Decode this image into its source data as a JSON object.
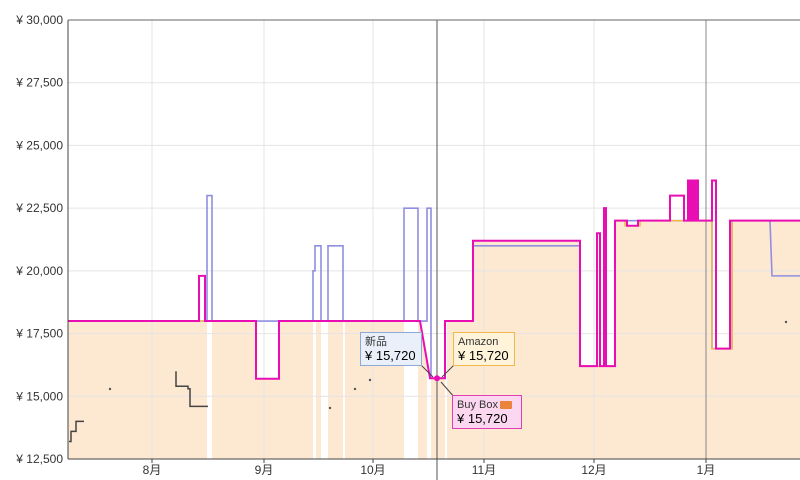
{
  "chart_data": {
    "type": "line",
    "y_ticks": [
      "¥ 12,500",
      "¥ 15,000",
      "¥ 17,500",
      "¥ 20,000",
      "¥ 22,500",
      "¥ 25,000",
      "¥ 27,500",
      "¥ 30,000"
    ],
    "ylim": [
      12500,
      30000
    ],
    "x_ticks": [
      "8月",
      "9月",
      "10月",
      "11月",
      "12月",
      "1月"
    ],
    "grid": true,
    "series": [
      {
        "key": "amazon",
        "color": "#f0b84a",
        "fill": "#fde8d2",
        "points": [
          [
            0,
            18000
          ],
          [
            210,
            18000
          ],
          [
            210,
            18000
          ],
          [
            256,
            18000
          ],
          [
            256,
            15700
          ],
          [
            279,
            15700
          ],
          [
            279,
            18000
          ],
          [
            420,
            18000
          ],
          [
            430,
            15720
          ],
          [
            445,
            15720
          ],
          [
            445,
            18000
          ],
          [
            473,
            18000
          ],
          [
            473,
            21200
          ],
          [
            580,
            21200
          ],
          [
            580,
            16200
          ],
          [
            615,
            16200
          ],
          [
            615,
            22000
          ],
          [
            625,
            22000
          ],
          [
            625,
            21800
          ],
          [
            640,
            21800
          ],
          [
            640,
            22000
          ],
          [
            700,
            22000
          ],
          [
            712,
            22000
          ],
          [
            712,
            16900
          ],
          [
            732,
            16900
          ],
          [
            732,
            22000
          ],
          [
            800,
            22000
          ]
        ]
      },
      {
        "key": "new",
        "color": "#8f8fe0",
        "points": [
          [
            0,
            18000
          ],
          [
            200,
            18000
          ],
          [
            200,
            18000
          ],
          [
            207,
            18000
          ],
          [
            207,
            23000
          ],
          [
            212,
            23000
          ],
          [
            212,
            18000
          ],
          [
            313,
            18000
          ],
          [
            313,
            20000
          ],
          [
            315,
            20000
          ],
          [
            315,
            21000
          ],
          [
            321,
            21000
          ],
          [
            321,
            18000
          ],
          [
            328,
            18000
          ],
          [
            328,
            21000
          ],
          [
            343,
            21000
          ],
          [
            343,
            18000
          ],
          [
            404,
            18000
          ],
          [
            404,
            22500
          ],
          [
            418,
            22500
          ],
          [
            418,
            18000
          ],
          [
            427,
            18000
          ],
          [
            427,
            22500
          ],
          [
            431,
            22500
          ],
          [
            431,
            15720
          ],
          [
            445,
            15720
          ],
          [
            445,
            18000
          ],
          [
            473,
            18000
          ],
          [
            473,
            21000
          ],
          [
            580,
            21000
          ],
          [
            580,
            16200
          ],
          [
            615,
            16200
          ],
          [
            615,
            22000
          ],
          [
            712,
            22000
          ],
          [
            712,
            16900
          ],
          [
            732,
            16900
          ],
          [
            732,
            22000
          ],
          [
            770,
            22000
          ],
          [
            772,
            19800
          ],
          [
            800,
            19800
          ]
        ]
      },
      {
        "key": "buybox",
        "color": "#e80eb4",
        "points": [
          [
            0,
            18000
          ],
          [
            199,
            18000
          ],
          [
            199,
            19800
          ],
          [
            205,
            19800
          ],
          [
            205,
            18000
          ],
          [
            256,
            18000
          ],
          [
            256,
            15700
          ],
          [
            279,
            15700
          ],
          [
            279,
            18000
          ],
          [
            420,
            18000
          ],
          [
            430,
            15720
          ],
          [
            445,
            15720
          ],
          [
            445,
            18000
          ],
          [
            473,
            18000
          ],
          [
            473,
            21200
          ],
          [
            580,
            21200
          ],
          [
            580,
            16200
          ],
          [
            597,
            16200
          ],
          [
            597,
            21500
          ],
          [
            600,
            21500
          ],
          [
            600,
            16200
          ],
          [
            604,
            16200
          ],
          [
            604,
            22500
          ],
          [
            606,
            22500
          ],
          [
            606,
            16200
          ],
          [
            615,
            16200
          ],
          [
            615,
            22000
          ],
          [
            627,
            22000
          ],
          [
            627,
            21800
          ],
          [
            638,
            21800
          ],
          [
            638,
            22000
          ],
          [
            670,
            22000
          ],
          [
            670,
            23000
          ],
          [
            684,
            23000
          ],
          [
            684,
            22000
          ],
          [
            688,
            22000
          ],
          [
            688,
            23600
          ],
          [
            690,
            23600
          ],
          [
            690,
            22000
          ],
          [
            692,
            22000
          ],
          [
            692,
            23600
          ],
          [
            694,
            23600
          ],
          [
            694,
            22000
          ],
          [
            696,
            22000
          ],
          [
            696,
            23600
          ],
          [
            698,
            23600
          ],
          [
            698,
            22000
          ],
          [
            712,
            22000
          ],
          [
            712,
            23600
          ],
          [
            716,
            23600
          ],
          [
            716,
            16900
          ],
          [
            730,
            16900
          ],
          [
            730,
            22000
          ],
          [
            800,
            22000
          ]
        ]
      },
      {
        "key": "used",
        "color": "#444444",
        "points": [
          [
            69,
            13200
          ],
          [
            71,
            13200
          ],
          [
            71,
            13600
          ],
          [
            76,
            13600
          ],
          [
            76,
            14000
          ],
          [
            84,
            14000
          ]
        ]
      },
      {
        "key": "used2",
        "color": "#444444",
        "points": [
          [
            176,
            16000
          ],
          [
            176,
            15400
          ],
          [
            188,
            15400
          ],
          [
            188,
            15300
          ],
          [
            190,
            15300
          ],
          [
            190,
            14600
          ],
          [
            208,
            14600
          ]
        ]
      }
    ],
    "annotations": [
      {
        "label": "新品",
        "value": "¥ 15,720"
      },
      {
        "label": "Amazon",
        "value": "¥ 15,720"
      },
      {
        "label": "Buy Box",
        "value": "¥ 15,720"
      }
    ]
  }
}
